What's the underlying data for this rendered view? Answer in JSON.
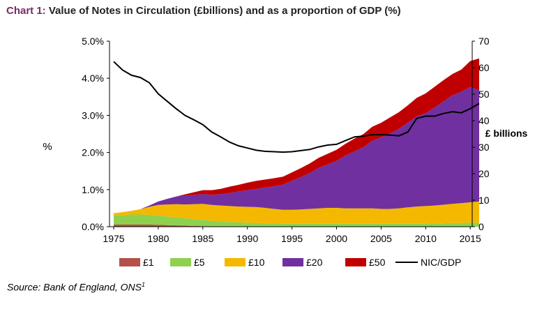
{
  "title": {
    "prefix": "Chart 1:",
    "main": " Value of Notes in Circulation (£billions) and as a proportion of GDP (%)"
  },
  "source": {
    "text": "Source: Bank of England, ONS",
    "sup": "1"
  },
  "chart_data": {
    "type": "area",
    "stacked": true,
    "years": [
      1975,
      1976,
      1977,
      1978,
      1979,
      1980,
      1981,
      1982,
      1983,
      1984,
      1985,
      1986,
      1987,
      1988,
      1989,
      1990,
      1991,
      1992,
      1993,
      1994,
      1995,
      1996,
      1997,
      1998,
      1999,
      2000,
      2001,
      2002,
      2003,
      2004,
      2005,
      2006,
      2007,
      2008,
      2009,
      2010,
      2011,
      2012,
      2013,
      2014,
      2015,
      2016
    ],
    "x_ticks": [
      "1975",
      "1980",
      "1985",
      "1990",
      "1995",
      "2000",
      "2005",
      "2010",
      "2015"
    ],
    "left_axis": {
      "label": "%",
      "range": [
        0,
        5
      ],
      "ticks": [
        "0.0%",
        "1.0%",
        "2.0%",
        "3.0%",
        "4.0%",
        "5.0%"
      ]
    },
    "right_axis": {
      "label": "£ billions",
      "range": [
        0,
        70
      ],
      "ticks": [
        "0",
        "10",
        "20",
        "30",
        "40",
        "50",
        "60",
        "70"
      ]
    },
    "series": [
      {
        "name": "£1",
        "color": "#b5504a",
        "axis": "right",
        "values": [
          0.8,
          0.8,
          0.8,
          0.8,
          0.8,
          0.7,
          0.6,
          0.5,
          0.4,
          0.3,
          0.2,
          0,
          0,
          0,
          0,
          0,
          0,
          0,
          0,
          0,
          0,
          0,
          0,
          0,
          0,
          0,
          0,
          0,
          0,
          0,
          0,
          0,
          0,
          0,
          0,
          0,
          0,
          0,
          0,
          0,
          0,
          0
        ]
      },
      {
        "name": "£5",
        "color": "#8fd14f",
        "axis": "right",
        "values": [
          3.4,
          3.6,
          3.8,
          3.8,
          3.7,
          3.5,
          3.3,
          3.0,
          2.8,
          2.6,
          2.4,
          2.2,
          2.0,
          1.8,
          1.6,
          1.5,
          1.4,
          1.3,
          1.2,
          1.1,
          1.1,
          1.1,
          1.1,
          1.1,
          1.1,
          1.1,
          1.1,
          1.1,
          1.1,
          1.1,
          1.1,
          1.1,
          1.1,
          1.1,
          1.1,
          1.1,
          1.2,
          1.3,
          1.4,
          1.4,
          1.5,
          1.5
        ]
      },
      {
        "name": "£10",
        "color": "#f5b800",
        "axis": "right",
        "values": [
          0.9,
          1.1,
          1.4,
          2.0,
          3.0,
          4.0,
          4.5,
          5.0,
          5.2,
          5.6,
          6.0,
          6.0,
          6.0,
          6.0,
          6.0,
          6.0,
          6.0,
          5.8,
          5.5,
          5.3,
          5.3,
          5.4,
          5.6,
          5.8,
          6.0,
          6.0,
          5.8,
          5.8,
          5.8,
          5.8,
          5.6,
          5.6,
          5.8,
          6.2,
          6.5,
          6.7,
          6.8,
          7.0,
          7.2,
          7.5,
          7.7,
          8.0
        ]
      },
      {
        "name": "£20",
        "color": "#7030a0",
        "axis": "right",
        "values": [
          0,
          0,
          0,
          0,
          0.5,
          1.3,
          2.1,
          2.9,
          3.3,
          3.5,
          3.7,
          3.8,
          4.3,
          4.9,
          5.7,
          6.3,
          6.9,
          7.7,
          8.6,
          9.5,
          10.9,
          12.2,
          13.6,
          15.3,
          16.4,
          17.7,
          20.0,
          21.5,
          23.0,
          25.5,
          27.0,
          28.5,
          30.0,
          32.0,
          34.0,
          35.0,
          37.0,
          39.0,
          41.0,
          42.0,
          43.5,
          42.0
        ]
      },
      {
        "name": "£50",
        "color": "#c00000",
        "axis": "right",
        "values": [
          0,
          0,
          0,
          0,
          0,
          0,
          0,
          0,
          0.5,
          1.0,
          1.5,
          1.8,
          2.0,
          2.4,
          2.5,
          2.8,
          3.0,
          3.0,
          3.0,
          3.0,
          3.2,
          3.4,
          3.6,
          3.8,
          4.0,
          4.2,
          4.4,
          4.8,
          5.0,
          5.3,
          5.5,
          6.0,
          6.3,
          6.5,
          7.0,
          7.5,
          7.8,
          8.0,
          8.0,
          8.4,
          9.8,
          12.0
        ]
      },
      {
        "name": "NIC/GDP",
        "type": "line",
        "color": "#000000",
        "axis": "left",
        "values": [
          4.45,
          4.22,
          4.08,
          4.02,
          3.88,
          3.58,
          3.38,
          3.18,
          3.0,
          2.88,
          2.75,
          2.55,
          2.42,
          2.28,
          2.18,
          2.12,
          2.06,
          2.03,
          2.02,
          2.01,
          2.02,
          2.05,
          2.08,
          2.15,
          2.2,
          2.22,
          2.32,
          2.42,
          2.44,
          2.48,
          2.48,
          2.47,
          2.45,
          2.55,
          2.92,
          2.98,
          2.98,
          3.05,
          3.1,
          3.07,
          3.18,
          3.32
        ]
      }
    ],
    "legend": {
      "position": "bottom",
      "order": [
        "£1",
        "£5",
        "£10",
        "£20",
        "£50",
        "NIC/GDP"
      ]
    }
  }
}
